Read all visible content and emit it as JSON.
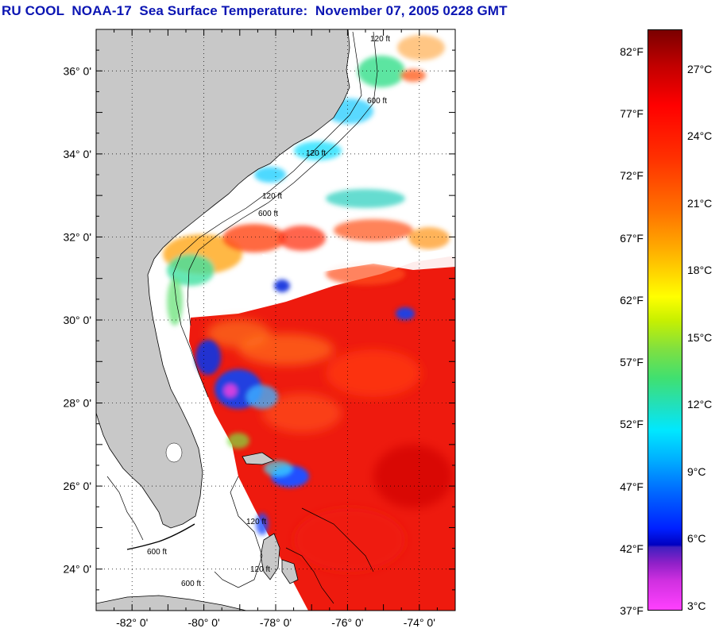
{
  "title": "RU COOL  NOAA-17  Sea Surface Temperature:  November 07, 2005 0228 GMT",
  "map": {
    "lat_range": [
      23,
      37
    ],
    "lon_range": [
      -83,
      -73
    ],
    "lat_labels": [
      "36° 0'",
      "34° 0'",
      "32° 0'",
      "30° 0'",
      "28° 0'",
      "26° 0'",
      "24° 0'"
    ],
    "lat_values": [
      36,
      34,
      32,
      30,
      28,
      26,
      24
    ],
    "lon_labels": [
      "-82° 0'",
      "-80° 0'",
      "-78° 0'",
      "-76° 0'",
      "-74° 0'"
    ],
    "lon_values": [
      -82,
      -80,
      -78,
      -76,
      -74
    ],
    "land_color": "#c8c8c8",
    "cloud_color": "#ffffff",
    "gridlines": "dotted",
    "isobath_labels": [
      "120 ft",
      "600 ft"
    ]
  },
  "colorbar": {
    "fahrenheit_labels": [
      "82°F",
      "77°F",
      "72°F",
      "67°F",
      "62°F",
      "57°F",
      "52°F",
      "47°F",
      "42°F",
      "37°F"
    ],
    "fahrenheit_values": [
      82,
      77,
      72,
      67,
      62,
      57,
      52,
      47,
      42,
      37
    ],
    "celsius_labels": [
      "27°C",
      "24°C",
      "21°C",
      "18°C",
      "15°C",
      "12°C",
      "9°C",
      "6°C",
      "3°C"
    ],
    "celsius_values": [
      27,
      24,
      21,
      18,
      15,
      12,
      9,
      6,
      3
    ]
  }
}
